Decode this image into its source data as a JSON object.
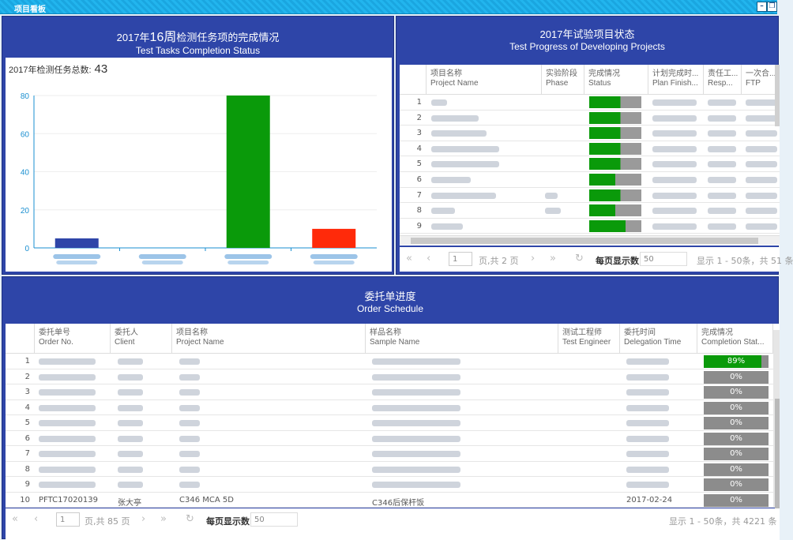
{
  "window": {
    "title": "项目看板",
    "minimize_icon": "minimize-icon",
    "restore_icon": "restore-icon"
  },
  "tasks_panel": {
    "title_zh_prefix": "2017年",
    "title_zh_week": "16周",
    "title_zh_suffix": "检测任务项的完成情况",
    "title_en": "Test Tasks Completion Status",
    "total_label": "2017年检测任务总数:",
    "total_value": "43"
  },
  "chart_data": {
    "type": "bar",
    "categories": [
      "",
      "",
      "",
      ""
    ],
    "values": [
      5,
      0,
      80,
      10
    ],
    "colors": [
      "#2e45a8",
      "#2e45a8",
      "#0a9a0a",
      "#ff2a0a"
    ],
    "ylim": [
      0,
      80
    ],
    "yticks": [
      0,
      20,
      40,
      60,
      80
    ],
    "grid": true,
    "title": "",
    "xlabel": "",
    "ylabel": ""
  },
  "progress_panel": {
    "title_zh": "2017年试验项目状态",
    "title_en": "Test Progress of Developing Projects",
    "columns": [
      {
        "zh": "项目名称",
        "en": "Project Name"
      },
      {
        "zh": "实验阶段",
        "en": "Phase"
      },
      {
        "zh": "完成情况",
        "en": "Status"
      },
      {
        "zh": "计划完成时...",
        "en": "Plan Finish..."
      },
      {
        "zh": "责任工...",
        "en": "Resp..."
      },
      {
        "zh": "一次合...",
        "en": "FTP"
      }
    ],
    "row_numbers": [
      "1",
      "2",
      "3",
      "4",
      "5",
      "6",
      "7",
      "8",
      "9"
    ],
    "status_fractions": [
      0.6,
      0.6,
      0.6,
      0.6,
      0.6,
      0.5,
      0.6,
      0.5,
      0.7
    ],
    "pager": {
      "page": "1",
      "page_total": "页,共 2 页",
      "page_size_label": "每页显示数:",
      "page_size": "50",
      "summary": "显示 1 - 50条，共 51 条"
    }
  },
  "order_panel": {
    "title_zh": "委托单进度",
    "title_en": "Order Schedule",
    "columns": [
      {
        "zh": "委托单号",
        "en": "Order No."
      },
      {
        "zh": "委托人",
        "en": "Client"
      },
      {
        "zh": "项目名称",
        "en": "Project Name"
      },
      {
        "zh": "样品名称",
        "en": "Sample Name"
      },
      {
        "zh": "测试工程师",
        "en": "Test Engineer"
      },
      {
        "zh": "委托时间",
        "en": "Delegation Time"
      },
      {
        "zh": "完成情况",
        "en": "Completion Stat..."
      }
    ],
    "rows": [
      {
        "n": "1",
        "pct": "89%",
        "frac": 0.89
      },
      {
        "n": "2",
        "pct": "0%",
        "frac": 0
      },
      {
        "n": "3",
        "pct": "0%",
        "frac": 0
      },
      {
        "n": "4",
        "pct": "0%",
        "frac": 0
      },
      {
        "n": "5",
        "pct": "0%",
        "frac": 0
      },
      {
        "n": "6",
        "pct": "0%",
        "frac": 0
      },
      {
        "n": "7",
        "pct": "0%",
        "frac": 0
      },
      {
        "n": "8",
        "pct": "0%",
        "frac": 0
      },
      {
        "n": "9",
        "pct": "0%",
        "frac": 0
      },
      {
        "n": "10",
        "pct": "0%",
        "frac": 0
      }
    ],
    "row10": {
      "order_no": "PFTC17020139",
      "client": "张大亭",
      "project": "C346 MCA 5D",
      "sample": "C346后保杆饭",
      "date": "2017-02-24"
    },
    "pager": {
      "page": "1",
      "page_total": "页,共 85 页",
      "page_size_label": "每页显示数:",
      "page_size": "50",
      "summary": "显示 1 - 50条，共 4221 条"
    }
  }
}
